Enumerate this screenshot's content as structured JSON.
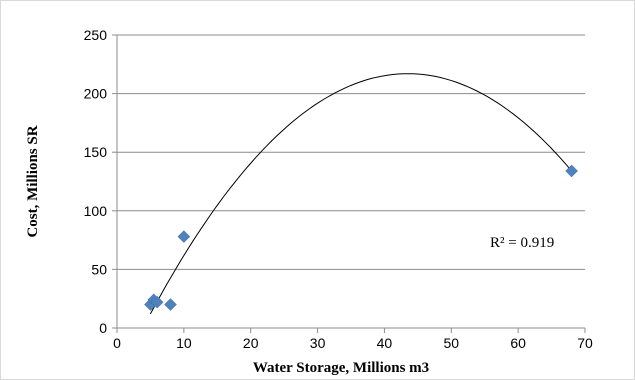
{
  "chart_data": {
    "type": "scatter",
    "xlabel": "Water Storage, Millions m3",
    "ylabel": "Cost, Millions SR",
    "xlim": [
      0,
      70
    ],
    "ylim": [
      0,
      250
    ],
    "xticks": [
      0,
      10,
      20,
      30,
      40,
      50,
      60,
      70
    ],
    "yticks": [
      0,
      50,
      100,
      150,
      200,
      250
    ],
    "grid": "horizontal",
    "points": [
      {
        "x": 5,
        "y": 20
      },
      {
        "x": 5.5,
        "y": 24
      },
      {
        "x": 6,
        "y": 22
      },
      {
        "x": 8,
        "y": 20
      },
      {
        "x": 10,
        "y": 78
      },
      {
        "x": 68,
        "y": 134
      }
    ],
    "trendline": {
      "type": "polynomial-2",
      "x_range": [
        5,
        68
      ],
      "peak_x": 43.5,
      "peak_y": 217,
      "r_squared_label": "R² = 0.919"
    },
    "marker_color": "#4f81bd",
    "line_color": "#000000"
  }
}
